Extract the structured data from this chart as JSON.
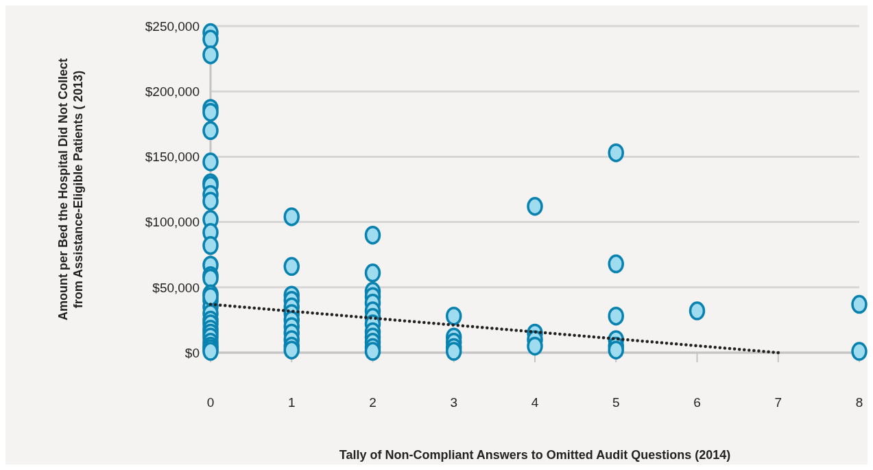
{
  "chart_data": {
    "type": "scatter",
    "xlabel": "Tally of Non-Compliant Answers to Omitted Audit Questions (2014)",
    "ylabel": "Amount per Bed the Hospital Did Not Collect\nfrom Assistance-Eligible Patients ( 2013)",
    "xlim": [
      0,
      8
    ],
    "xticks": [
      0,
      1,
      2,
      3,
      4,
      5,
      6,
      7,
      8
    ],
    "ylim": [
      0,
      250000
    ],
    "yticks": [
      {
        "value": 0,
        "label": "$0"
      },
      {
        "value": 50000,
        "label": "$50,000"
      },
      {
        "value": 100000,
        "label": "$100,000"
      },
      {
        "value": 150000,
        "label": "$150,000"
      },
      {
        "value": 200000,
        "label": "$200,000"
      },
      {
        "value": 250000,
        "label": "$250,000"
      }
    ],
    "grid": "y",
    "marker": "circle",
    "legend": false,
    "series": [
      {
        "color": "#0a82b0",
        "x": [
          0,
          0,
          0,
          0,
          0,
          0,
          0,
          0,
          0,
          0,
          0,
          0,
          0,
          0,
          0,
          0,
          0,
          0,
          0,
          0,
          0,
          0,
          0,
          0,
          0,
          0,
          0,
          0,
          0,
          0,
          0,
          1,
          1,
          1,
          1,
          1,
          1,
          1,
          1,
          1,
          1,
          1,
          1,
          2,
          2,
          2,
          2,
          2,
          2,
          2,
          2,
          2,
          2,
          2,
          2,
          2,
          3,
          3,
          3,
          3,
          3,
          4,
          4,
          4,
          4,
          5,
          5,
          5,
          5,
          5,
          5,
          6,
          8,
          8
        ],
        "values": [
          245000,
          240000,
          228000,
          187000,
          184000,
          170000,
          146000,
          130000,
          128000,
          121000,
          116000,
          102000,
          92000,
          82000,
          67000,
          59000,
          57000,
          45000,
          40000,
          35000,
          30000,
          25000,
          22000,
          18000,
          15000,
          12000,
          8000,
          5000,
          3000,
          1000,
          43000,
          104000,
          66000,
          44000,
          40000,
          35000,
          30000,
          25000,
          20000,
          15000,
          10000,
          5000,
          2000,
          90000,
          61000,
          47000,
          43000,
          38000,
          32000,
          27000,
          22000,
          16000,
          12000,
          8000,
          4000,
          1000,
          28000,
          12000,
          8000,
          4000,
          1000,
          112000,
          15000,
          10000,
          5000,
          153000,
          68000,
          28000,
          10000,
          5000,
          2000,
          32000,
          37000,
          1000
        ]
      },
      {
        "type": "line",
        "color": "#222222",
        "line_style": "dotted",
        "marker": "none",
        "x": [
          0,
          7
        ],
        "values": [
          37000,
          0
        ]
      }
    ]
  }
}
